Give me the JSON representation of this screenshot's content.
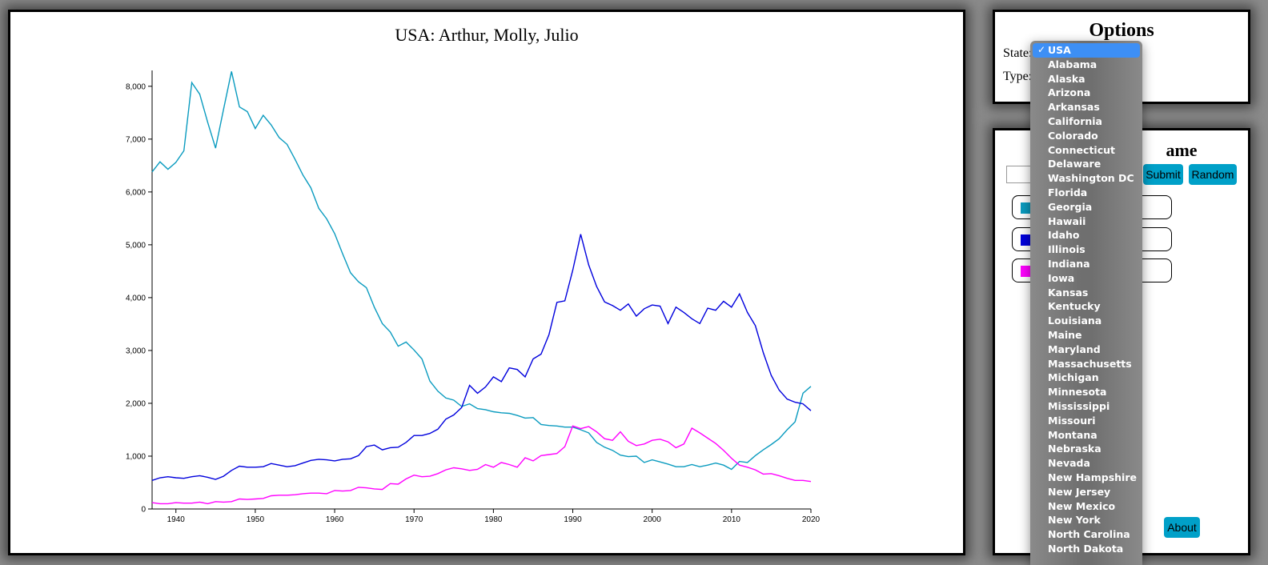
{
  "chart_panel": {
    "title": "USA: Arthur, Molly, Julio"
  },
  "chart_data": {
    "type": "line",
    "title": "USA: Arthur, Molly, Julio",
    "xlabel": "",
    "ylabel": "",
    "xlim": [
      1937,
      2020
    ],
    "ylim": [
      0,
      8300
    ],
    "x_ticks": [
      1940,
      1950,
      1960,
      1970,
      1980,
      1990,
      2000,
      2010,
      2020
    ],
    "y_ticks": [
      0,
      1000,
      2000,
      3000,
      4000,
      5000,
      6000,
      7000,
      8000
    ],
    "y_tick_labels": [
      "0",
      "1,000",
      "2,000",
      "3,000",
      "4,000",
      "5,000",
      "6,000",
      "7,000",
      "8,000"
    ],
    "grid": false,
    "series": [
      {
        "color": "#0a9bbf",
        "points": [
          [
            1937,
            6380
          ],
          [
            1938,
            6570
          ],
          [
            1939,
            6430
          ],
          [
            1940,
            6560
          ],
          [
            1941,
            6780
          ],
          [
            1942,
            8070
          ],
          [
            1943,
            7850
          ],
          [
            1944,
            7320
          ],
          [
            1945,
            6830
          ],
          [
            1946,
            7560
          ],
          [
            1947,
            8280
          ],
          [
            1948,
            7610
          ],
          [
            1949,
            7520
          ],
          [
            1950,
            7200
          ],
          [
            1951,
            7450
          ],
          [
            1952,
            7270
          ],
          [
            1953,
            7030
          ],
          [
            1954,
            6900
          ],
          [
            1955,
            6620
          ],
          [
            1956,
            6320
          ],
          [
            1957,
            6080
          ],
          [
            1958,
            5690
          ],
          [
            1959,
            5490
          ],
          [
            1960,
            5210
          ],
          [
            1961,
            4830
          ],
          [
            1962,
            4470
          ],
          [
            1963,
            4300
          ],
          [
            1964,
            4190
          ],
          [
            1965,
            3820
          ],
          [
            1966,
            3510
          ],
          [
            1967,
            3350
          ],
          [
            1968,
            3080
          ],
          [
            1969,
            3160
          ],
          [
            1970,
            3010
          ],
          [
            1971,
            2840
          ],
          [
            1972,
            2420
          ],
          [
            1973,
            2230
          ],
          [
            1974,
            2100
          ],
          [
            1975,
            2060
          ],
          [
            1976,
            1940
          ],
          [
            1977,
            1990
          ],
          [
            1978,
            1900
          ],
          [
            1979,
            1880
          ],
          [
            1980,
            1840
          ],
          [
            1981,
            1820
          ],
          [
            1982,
            1810
          ],
          [
            1983,
            1770
          ],
          [
            1984,
            1720
          ],
          [
            1985,
            1730
          ],
          [
            1986,
            1600
          ],
          [
            1987,
            1580
          ],
          [
            1988,
            1570
          ],
          [
            1989,
            1550
          ],
          [
            1990,
            1550
          ],
          [
            1991,
            1500
          ],
          [
            1992,
            1440
          ],
          [
            1993,
            1260
          ],
          [
            1994,
            1170
          ],
          [
            1995,
            1110
          ],
          [
            1996,
            1020
          ],
          [
            1997,
            990
          ],
          [
            1998,
            1000
          ],
          [
            1999,
            880
          ],
          [
            2000,
            930
          ],
          [
            2001,
            890
          ],
          [
            2002,
            850
          ],
          [
            2003,
            800
          ],
          [
            2004,
            800
          ],
          [
            2005,
            840
          ],
          [
            2006,
            800
          ],
          [
            2007,
            830
          ],
          [
            2008,
            870
          ],
          [
            2009,
            830
          ],
          [
            2010,
            750
          ],
          [
            2011,
            900
          ],
          [
            2012,
            880
          ],
          [
            2013,
            1010
          ],
          [
            2014,
            1120
          ],
          [
            2015,
            1220
          ],
          [
            2016,
            1330
          ],
          [
            2017,
            1500
          ],
          [
            2018,
            1650
          ],
          [
            2019,
            2190
          ],
          [
            2020,
            2320
          ]
        ]
      },
      {
        "color": "#0000dd",
        "points": [
          [
            1937,
            540
          ],
          [
            1938,
            590
          ],
          [
            1939,
            610
          ],
          [
            1940,
            590
          ],
          [
            1941,
            580
          ],
          [
            1942,
            610
          ],
          [
            1943,
            630
          ],
          [
            1944,
            600
          ],
          [
            1945,
            560
          ],
          [
            1946,
            620
          ],
          [
            1947,
            730
          ],
          [
            1948,
            810
          ],
          [
            1949,
            790
          ],
          [
            1950,
            790
          ],
          [
            1951,
            800
          ],
          [
            1952,
            860
          ],
          [
            1953,
            830
          ],
          [
            1954,
            800
          ],
          [
            1955,
            820
          ],
          [
            1956,
            870
          ],
          [
            1957,
            920
          ],
          [
            1958,
            940
          ],
          [
            1959,
            930
          ],
          [
            1960,
            910
          ],
          [
            1961,
            940
          ],
          [
            1962,
            950
          ],
          [
            1963,
            1010
          ],
          [
            1964,
            1180
          ],
          [
            1965,
            1210
          ],
          [
            1966,
            1120
          ],
          [
            1967,
            1160
          ],
          [
            1968,
            1170
          ],
          [
            1969,
            1260
          ],
          [
            1970,
            1390
          ],
          [
            1971,
            1390
          ],
          [
            1972,
            1430
          ],
          [
            1973,
            1510
          ],
          [
            1974,
            1700
          ],
          [
            1975,
            1780
          ],
          [
            1976,
            1920
          ],
          [
            1977,
            2340
          ],
          [
            1978,
            2190
          ],
          [
            1979,
            2310
          ],
          [
            1980,
            2500
          ],
          [
            1981,
            2410
          ],
          [
            1982,
            2670
          ],
          [
            1983,
            2640
          ],
          [
            1984,
            2500
          ],
          [
            1985,
            2840
          ],
          [
            1986,
            2930
          ],
          [
            1987,
            3300
          ],
          [
            1988,
            3910
          ],
          [
            1989,
            3940
          ],
          [
            1990,
            4520
          ],
          [
            1991,
            5200
          ],
          [
            1992,
            4620
          ],
          [
            1993,
            4210
          ],
          [
            1994,
            3920
          ],
          [
            1995,
            3850
          ],
          [
            1996,
            3760
          ],
          [
            1997,
            3880
          ],
          [
            1998,
            3650
          ],
          [
            1999,
            3790
          ],
          [
            2000,
            3860
          ],
          [
            2001,
            3840
          ],
          [
            2002,
            3510
          ],
          [
            2003,
            3820
          ],
          [
            2004,
            3720
          ],
          [
            2005,
            3600
          ],
          [
            2006,
            3510
          ],
          [
            2007,
            3800
          ],
          [
            2008,
            3760
          ],
          [
            2009,
            3930
          ],
          [
            2010,
            3820
          ],
          [
            2011,
            4070
          ],
          [
            2012,
            3720
          ],
          [
            2013,
            3470
          ],
          [
            2014,
            2960
          ],
          [
            2015,
            2530
          ],
          [
            2016,
            2250
          ],
          [
            2017,
            2080
          ],
          [
            2018,
            2020
          ],
          [
            2019,
            1990
          ],
          [
            2020,
            1860
          ]
        ]
      },
      {
        "color": "#ff00ff",
        "points": [
          [
            1937,
            120
          ],
          [
            1938,
            100
          ],
          [
            1939,
            100
          ],
          [
            1940,
            120
          ],
          [
            1941,
            110
          ],
          [
            1942,
            110
          ],
          [
            1943,
            130
          ],
          [
            1944,
            100
          ],
          [
            1945,
            140
          ],
          [
            1946,
            130
          ],
          [
            1947,
            140
          ],
          [
            1948,
            190
          ],
          [
            1949,
            180
          ],
          [
            1950,
            190
          ],
          [
            1951,
            200
          ],
          [
            1952,
            250
          ],
          [
            1953,
            260
          ],
          [
            1954,
            260
          ],
          [
            1955,
            270
          ],
          [
            1956,
            290
          ],
          [
            1957,
            300
          ],
          [
            1958,
            300
          ],
          [
            1959,
            290
          ],
          [
            1960,
            350
          ],
          [
            1961,
            340
          ],
          [
            1962,
            350
          ],
          [
            1963,
            410
          ],
          [
            1964,
            400
          ],
          [
            1965,
            380
          ],
          [
            1966,
            370
          ],
          [
            1967,
            480
          ],
          [
            1968,
            470
          ],
          [
            1969,
            570
          ],
          [
            1970,
            640
          ],
          [
            1971,
            610
          ],
          [
            1972,
            620
          ],
          [
            1973,
            670
          ],
          [
            1974,
            740
          ],
          [
            1975,
            780
          ],
          [
            1976,
            760
          ],
          [
            1977,
            730
          ],
          [
            1978,
            750
          ],
          [
            1979,
            840
          ],
          [
            1980,
            790
          ],
          [
            1981,
            880
          ],
          [
            1982,
            840
          ],
          [
            1983,
            790
          ],
          [
            1984,
            970
          ],
          [
            1985,
            910
          ],
          [
            1986,
            1010
          ],
          [
            1987,
            1030
          ],
          [
            1988,
            1050
          ],
          [
            1989,
            1180
          ],
          [
            1990,
            1570
          ],
          [
            1991,
            1520
          ],
          [
            1992,
            1560
          ],
          [
            1993,
            1460
          ],
          [
            1994,
            1330
          ],
          [
            1995,
            1300
          ],
          [
            1996,
            1460
          ],
          [
            1997,
            1280
          ],
          [
            1998,
            1200
          ],
          [
            1999,
            1230
          ],
          [
            2000,
            1300
          ],
          [
            2001,
            1320
          ],
          [
            2002,
            1270
          ],
          [
            2003,
            1160
          ],
          [
            2004,
            1230
          ],
          [
            2005,
            1530
          ],
          [
            2006,
            1440
          ],
          [
            2007,
            1340
          ],
          [
            2008,
            1240
          ],
          [
            2009,
            1110
          ],
          [
            2010,
            960
          ],
          [
            2011,
            830
          ],
          [
            2012,
            790
          ],
          [
            2013,
            740
          ],
          [
            2014,
            660
          ],
          [
            2015,
            670
          ],
          [
            2016,
            630
          ],
          [
            2017,
            580
          ],
          [
            2018,
            540
          ],
          [
            2019,
            540
          ],
          [
            2020,
            520
          ]
        ]
      }
    ]
  },
  "options_panel": {
    "title": "Options",
    "state_label": "State:",
    "type_label": "Type:"
  },
  "names_panel": {
    "title_visible": "ame",
    "submit_label": "Submit",
    "random_label": "Random",
    "about_label": "About",
    "name_input_value": "",
    "entries": [
      {
        "color": "#0a9bbf",
        "label": ""
      },
      {
        "color": "#0000dd",
        "label": ""
      },
      {
        "color": "#ff00ff",
        "label": ""
      }
    ]
  },
  "state_dropdown": {
    "selected": "USA",
    "check_icon": "checkmark-icon",
    "options": [
      "USA",
      "Alabama",
      "Alaska",
      "Arizona",
      "Arkansas",
      "California",
      "Colorado",
      "Connecticut",
      "Delaware",
      "Washington DC",
      "Florida",
      "Georgia",
      "Hawaii",
      "Idaho",
      "Illinois",
      "Indiana",
      "Iowa",
      "Kansas",
      "Kentucky",
      "Louisiana",
      "Maine",
      "Maryland",
      "Massachusetts",
      "Michigan",
      "Minnesota",
      "Mississippi",
      "Missouri",
      "Montana",
      "Nebraska",
      "Nevada",
      "New Hampshire",
      "New Jersey",
      "New Mexico",
      "New York",
      "North Carolina",
      "North Dakota"
    ]
  }
}
